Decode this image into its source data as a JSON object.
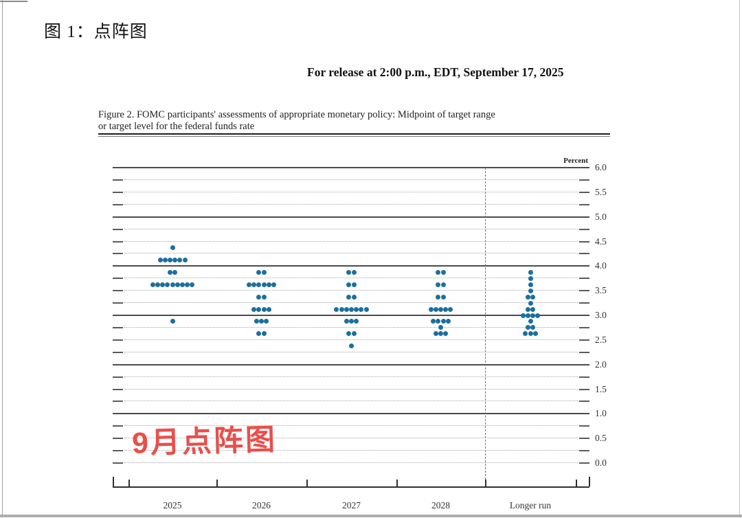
{
  "page": {
    "title": "图 1：点阵图",
    "release_line": "For release at 2:00 p.m., EDT, September 17, 2025",
    "caption_line1": "Figure 2. FOMC participants' assessments of appropriate monetary policy: Midpoint of target range",
    "caption_line2": "or target level for the federal funds rate",
    "annotation": "9月点阵图",
    "annotation_color": "#e8504c"
  },
  "chart_data": {
    "type": "scatter",
    "title": "FOMC participants' assessments of appropriate monetary policy: Midpoint of target range or target level for the federal funds rate",
    "unit_label": "Percent",
    "ylabel": "Percent",
    "xlabel": "",
    "ylim": [
      0.0,
      6.0
    ],
    "grid_step": 0.25,
    "grid": true,
    "legend_position": "none",
    "dot_color": "#1b6f9e",
    "categories": [
      "2025",
      "2026",
      "2027",
      "2028",
      "Longer run"
    ],
    "yticks": [
      {
        "value": 6.0,
        "label": "6.0"
      },
      {
        "value": 5.5,
        "label": "5.5"
      },
      {
        "value": 5.0,
        "label": "5.0"
      },
      {
        "value": 4.5,
        "label": "4.5"
      },
      {
        "value": 4.0,
        "label": "4.0"
      },
      {
        "value": 3.5,
        "label": "3.5"
      },
      {
        "value": 3.0,
        "label": "3.0"
      },
      {
        "value": 2.5,
        "label": "2.5"
      },
      {
        "value": 2.0,
        "label": "2.0"
      },
      {
        "value": 1.5,
        "label": "1.5"
      },
      {
        "value": 1.0,
        "label": "1.0"
      },
      {
        "value": 0.5,
        "label": "0.5"
      },
      {
        "value": 0.0,
        "label": "0.0"
      }
    ],
    "series": [
      {
        "category": "2025",
        "dots": [
          {
            "rate": 4.375,
            "count": 1
          },
          {
            "rate": 4.125,
            "count": 6
          },
          {
            "rate": 3.875,
            "count": 2
          },
          {
            "rate": 3.625,
            "count": 9
          },
          {
            "rate": 2.875,
            "count": 1
          }
        ]
      },
      {
        "category": "2026",
        "dots": [
          {
            "rate": 3.875,
            "count": 2
          },
          {
            "rate": 3.625,
            "count": 6
          },
          {
            "rate": 3.375,
            "count": 2
          },
          {
            "rate": 3.125,
            "count": 4
          },
          {
            "rate": 2.875,
            "count": 3
          },
          {
            "rate": 2.625,
            "count": 2
          }
        ]
      },
      {
        "category": "2027",
        "dots": [
          {
            "rate": 3.875,
            "count": 2
          },
          {
            "rate": 3.625,
            "count": 2
          },
          {
            "rate": 3.375,
            "count": 2
          },
          {
            "rate": 3.125,
            "count": 7
          },
          {
            "rate": 2.875,
            "count": 3
          },
          {
            "rate": 2.625,
            "count": 2
          },
          {
            "rate": 2.375,
            "count": 1
          }
        ]
      },
      {
        "category": "2028",
        "dots": [
          {
            "rate": 3.875,
            "count": 2
          },
          {
            "rate": 3.625,
            "count": 2
          },
          {
            "rate": 3.375,
            "count": 2
          },
          {
            "rate": 3.125,
            "count": 5
          },
          {
            "rate": 2.875,
            "count": 4
          },
          {
            "rate": 2.75,
            "count": 1
          },
          {
            "rate": 2.625,
            "count": 3
          }
        ]
      },
      {
        "category": "Longer run",
        "dots": [
          {
            "rate": 3.875,
            "count": 1
          },
          {
            "rate": 3.75,
            "count": 1
          },
          {
            "rate": 3.625,
            "count": 1
          },
          {
            "rate": 3.5,
            "count": 1
          },
          {
            "rate": 3.375,
            "count": 2
          },
          {
            "rate": 3.25,
            "count": 1
          },
          {
            "rate": 3.125,
            "count": 2
          },
          {
            "rate": 3.0,
            "count": 4
          },
          {
            "rate": 2.875,
            "count": 1
          },
          {
            "rate": 2.75,
            "count": 2
          },
          {
            "rate": 2.625,
            "count": 3
          }
        ]
      }
    ]
  }
}
